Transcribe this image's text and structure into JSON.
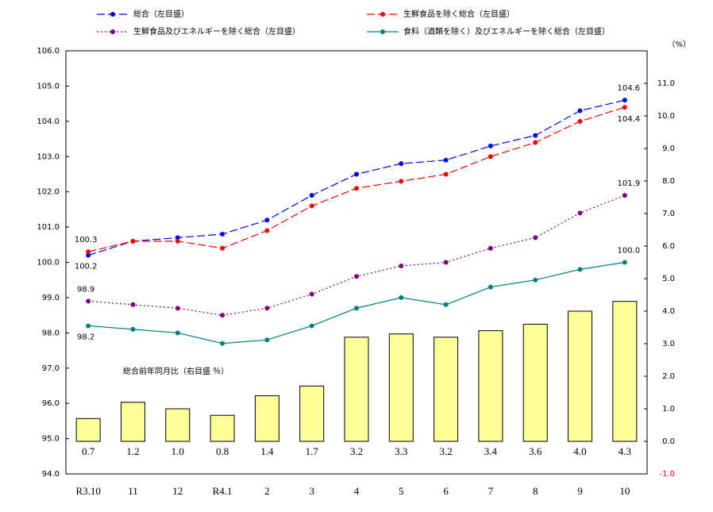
{
  "chart_data": {
    "type": "combo",
    "categories": [
      "R3.10",
      "11",
      "12",
      "R4.1",
      "2",
      "3",
      "4",
      "5",
      "6",
      "7",
      "8",
      "9",
      "10"
    ],
    "series": [
      {
        "name": "総合（左目盛）",
        "type": "line",
        "color": "#0000ff",
        "style": "dashed",
        "values": [
          100.2,
          100.6,
          100.7,
          100.8,
          101.2,
          101.9,
          102.5,
          102.8,
          102.9,
          103.3,
          103.6,
          104.3,
          104.6
        ],
        "value_labels": [
          "100.2",
          null,
          null,
          null,
          null,
          null,
          null,
          null,
          null,
          null,
          null,
          null,
          "104.6"
        ]
      },
      {
        "name": "生鮮食品を除く総合（左目盛）",
        "type": "line",
        "color": "#ff0000",
        "style": "dashed",
        "values": [
          100.3,
          100.6,
          100.6,
          100.4,
          100.9,
          101.6,
          102.1,
          102.3,
          102.5,
          103.0,
          103.4,
          104.0,
          104.4
        ],
        "value_labels": [
          "100.3",
          null,
          null,
          null,
          null,
          null,
          null,
          null,
          null,
          null,
          null,
          null,
          "104.4"
        ]
      },
      {
        "name": "生鮮食品及びエネルギーを除く総合（左目盛）",
        "type": "line",
        "color": "#800080",
        "style": "dotted",
        "values": [
          98.9,
          98.8,
          98.7,
          98.5,
          98.7,
          99.1,
          99.6,
          99.9,
          100.0,
          100.4,
          100.7,
          101.4,
          101.9
        ],
        "value_labels": [
          "98.9",
          null,
          null,
          null,
          null,
          null,
          null,
          null,
          null,
          null,
          null,
          null,
          "101.9"
        ]
      },
      {
        "name": "食料（酒類を除く）及びエネルギーを除く総合（左目盛）",
        "type": "line",
        "color": "#008080",
        "style": "solid",
        "values": [
          98.2,
          98.1,
          98.0,
          97.7,
          97.8,
          98.2,
          98.7,
          99.0,
          98.8,
          99.3,
          99.5,
          99.8,
          100.0
        ],
        "value_labels": [
          "98.2",
          null,
          null,
          null,
          null,
          null,
          null,
          null,
          null,
          null,
          null,
          null,
          "100.0"
        ]
      },
      {
        "name": "総合前年同月比（右目盛 ％）",
        "type": "bar",
        "axis": "y2",
        "color": "#ffff99",
        "values": [
          0.7,
          1.2,
          1.0,
          0.8,
          1.4,
          1.7,
          3.2,
          3.3,
          3.2,
          3.4,
          3.6,
          4.0,
          4.3
        ],
        "value_labels": [
          "0.7",
          "1.2",
          "1.0",
          "0.8",
          "1.4",
          "1.7",
          "3.2",
          "3.3",
          "3.2",
          "3.4",
          "3.6",
          "4.0",
          "4.3"
        ]
      }
    ],
    "ylim": [
      94,
      106
    ],
    "yticks": [
      {
        "value": 94,
        "label": "94.0"
      },
      {
        "value": 95,
        "label": "95.0"
      },
      {
        "value": 96,
        "label": "96.0"
      },
      {
        "value": 97,
        "label": "97.0"
      },
      {
        "value": 98,
        "label": "98.0"
      },
      {
        "value": 99,
        "label": "99.0"
      },
      {
        "value": 100,
        "label": "100.0"
      },
      {
        "value": 101,
        "label": "101.0"
      },
      {
        "value": 102,
        "label": "102.0"
      },
      {
        "value": 103,
        "label": "103.0"
      },
      {
        "value": 104,
        "label": "104.0"
      },
      {
        "value": 105,
        "label": "105.0"
      },
      {
        "value": 106,
        "label": "106.0"
      }
    ],
    "y2lim": [
      -1,
      12
    ],
    "y2ticks": [
      {
        "value": -1,
        "label": "-1.0",
        "color": "#ff0000"
      },
      {
        "value": 0,
        "label": "0.0"
      },
      {
        "value": 1,
        "label": "1.0"
      },
      {
        "value": 2,
        "label": "2.0"
      },
      {
        "value": 3,
        "label": "3.0"
      },
      {
        "value": 4,
        "label": "4.0"
      },
      {
        "value": 5,
        "label": "5.0"
      },
      {
        "value": 6,
        "label": "6.0"
      },
      {
        "value": 7,
        "label": "7.0"
      },
      {
        "value": 8,
        "label": "8.0"
      },
      {
        "value": 9,
        "label": "9.0"
      },
      {
        "value": 10,
        "label": "10.0"
      },
      {
        "value": 11,
        "label": "11.0"
      }
    ],
    "y2_unit": "（%）",
    "grid": false
  }
}
